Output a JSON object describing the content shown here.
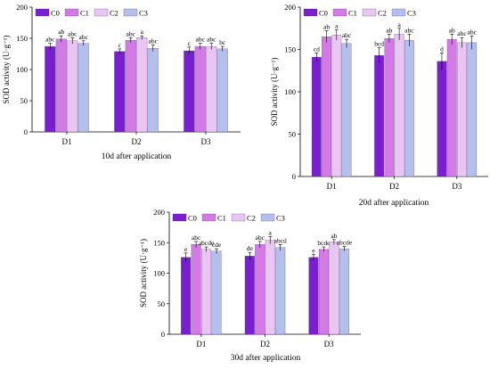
{
  "colors": {
    "C0": "#7a1fd0",
    "C1": "#d47ae6",
    "C2": "#e9c5f2",
    "C3": "#b4c0ec",
    "axis": "#000000"
  },
  "chart_data": [
    {
      "type": "bar",
      "caption": "10d after application",
      "ylabel": "SOD activity (U·g⁻¹)",
      "ylim": [
        0,
        200
      ],
      "yticks": [
        0,
        50,
        100,
        150,
        200
      ],
      "categories": [
        "D1",
        "D2",
        "D3"
      ],
      "series": [
        {
          "name": "C0",
          "values": [
            137,
            129,
            130
          ],
          "errors": [
            5,
            4,
            6
          ],
          "letters": [
            "abc",
            "c",
            "c"
          ]
        },
        {
          "name": "C1",
          "values": [
            149,
            147,
            137
          ],
          "errors": [
            5,
            4,
            5
          ],
          "letters": [
            "ab",
            "abc",
            "abc"
          ]
        },
        {
          "name": "C2",
          "values": [
            146,
            151,
            137
          ],
          "errors": [
            5,
            3,
            5
          ],
          "letters": [
            "abc",
            "a",
            "abc"
          ]
        },
        {
          "name": "C3",
          "values": [
            142,
            134,
            133
          ],
          "errors": [
            4,
            5,
            4
          ],
          "letters": [
            "abc",
            "abc",
            "bc"
          ]
        }
      ],
      "legend": "top-left"
    },
    {
      "type": "bar",
      "caption": "20d after application",
      "ylabel": "SOD activity (U·g⁻¹)",
      "ylim": [
        0,
        200
      ],
      "yticks": [
        0,
        50,
        100,
        150,
        200
      ],
      "categories": [
        "D1",
        "D2",
        "D3"
      ],
      "series": [
        {
          "name": "C0",
          "values": [
            141,
            143,
            136
          ],
          "errors": [
            5,
            9,
            10
          ],
          "letters": [
            "cd",
            "bcd",
            "d"
          ]
        },
        {
          "name": "C1",
          "values": [
            165,
            163,
            162
          ],
          "errors": [
            7,
            5,
            6
          ],
          "letters": [
            "ab",
            "ab",
            "ab"
          ]
        },
        {
          "name": "C2",
          "values": [
            167,
            168,
            158
          ],
          "errors": [
            6,
            7,
            6
          ],
          "letters": [
            "a",
            "a",
            "abc"
          ]
        },
        {
          "name": "C3",
          "values": [
            157,
            161,
            158
          ],
          "errors": [
            5,
            7,
            8
          ],
          "letters": [
            "abc",
            "abc",
            "abc"
          ]
        }
      ],
      "legend": "top-left"
    },
    {
      "type": "bar",
      "caption": "30d after application",
      "ylabel": "SOD activity (U·g⁻¹)",
      "ylim": [
        0,
        200
      ],
      "yticks": [
        0,
        50,
        100,
        150,
        200
      ],
      "categories": [
        "D1",
        "D2",
        "D3"
      ],
      "series": [
        {
          "name": "C0",
          "values": [
            126,
            128,
            126
          ],
          "errors": [
            7,
            6,
            5
          ],
          "letters": [
            "e",
            "de",
            "e"
          ]
        },
        {
          "name": "C1",
          "values": [
            147,
            147,
            139
          ],
          "errors": [
            5,
            5,
            4
          ],
          "letters": [
            "abc",
            "abc",
            "bcde"
          ]
        },
        {
          "name": "C2",
          "values": [
            139,
            154,
            151
          ],
          "errors": [
            4,
            6,
            4
          ],
          "letters": [
            "abcde",
            "a",
            "ab"
          ]
        },
        {
          "name": "C3",
          "values": [
            136,
            142,
            140
          ],
          "errors": [
            4,
            5,
            4
          ],
          "letters": [
            "cde",
            "abcd",
            "abcde"
          ]
        }
      ],
      "legend": "top-left"
    }
  ]
}
